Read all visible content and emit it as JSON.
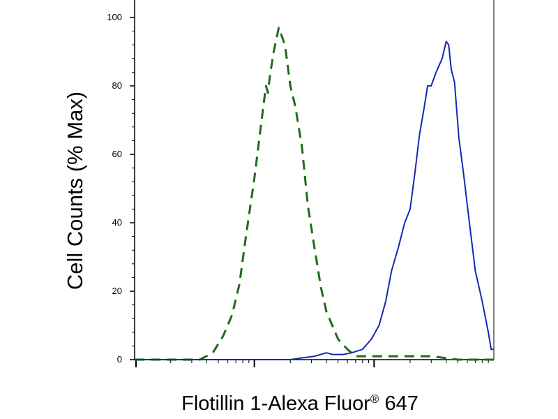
{
  "chart_data": {
    "type": "line",
    "title": "",
    "xlabel": {
      "main": "Flotillin 1-Alexa Fluor",
      "mark": "®",
      "tail": "647"
    },
    "ylabel": "Cell Counts (% Max)",
    "x_scale": "log",
    "xlim": [
      1,
      1000
    ],
    "ylim": [
      0,
      100
    ],
    "yticks": [
      0,
      20,
      40,
      60,
      80,
      100
    ],
    "ytick_labels": [
      "0",
      "20",
      "40",
      "60",
      "80",
      "100"
    ],
    "xticks_major": [
      10,
      100,
      1000
    ],
    "grid": false,
    "series": [
      {
        "style": "dashed",
        "color": "#1e6b1e",
        "x": [
          1,
          2,
          3.5,
          4.5,
          5.5,
          6.5,
          7.5,
          8.5,
          10,
          11.5,
          12.5,
          13,
          13.5,
          14.5,
          16,
          18,
          20,
          22,
          25,
          28,
          32,
          36,
          40,
          50,
          60,
          70,
          100,
          200,
          300,
          500,
          1000
        ],
        "y": [
          0,
          0,
          0,
          2,
          7,
          13,
          22,
          36,
          53,
          70,
          80,
          78,
          83,
          90,
          97,
          92,
          80,
          74,
          62,
          45,
          32,
          21,
          14,
          6,
          3,
          1,
          1,
          1,
          1,
          0,
          0
        ]
      },
      {
        "style": "solid",
        "color": "#1428b4",
        "x": [
          1,
          10,
          20,
          25,
          32,
          40,
          45,
          55,
          65,
          80,
          95,
          110,
          125,
          140,
          160,
          180,
          200,
          220,
          240,
          260,
          280,
          300,
          330,
          370,
          400,
          420,
          440,
          470,
          510,
          560,
          620,
          700,
          800,
          900,
          950,
          1000
        ],
        "y": [
          0,
          0,
          0,
          0.5,
          1,
          2,
          1.5,
          1.5,
          2,
          3,
          6,
          10,
          17,
          26,
          33,
          40,
          44,
          55,
          66,
          73,
          80,
          80,
          84,
          88,
          93,
          92,
          85,
          81,
          65,
          54,
          41,
          26,
          17,
          8,
          3,
          3
        ]
      }
    ]
  }
}
